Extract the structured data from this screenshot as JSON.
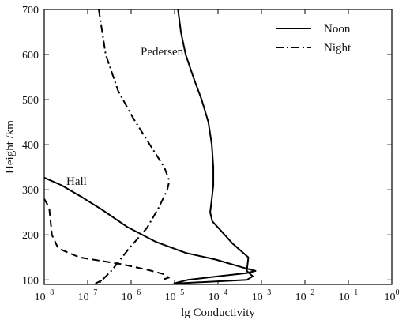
{
  "chart_data": {
    "type": "line",
    "xlabel": "lg Conductivity",
    "ylabel": "Height /km",
    "x_scale": "log",
    "xlim": [
      1e-08,
      1
    ],
    "ylim": [
      90,
      700
    ],
    "x_ticks": [
      {
        "value": 1e-08,
        "mantissa": "10",
        "exp": "−8"
      },
      {
        "value": 1e-07,
        "mantissa": "10",
        "exp": "−7"
      },
      {
        "value": 1e-06,
        "mantissa": "10",
        "exp": "−6"
      },
      {
        "value": 1e-05,
        "mantissa": "10",
        "exp": "−5"
      },
      {
        "value": 0.0001,
        "mantissa": "10",
        "exp": "−4"
      },
      {
        "value": 0.001,
        "mantissa": "10",
        "exp": "−3"
      },
      {
        "value": 0.01,
        "mantissa": "10",
        "exp": "−2"
      },
      {
        "value": 0.1,
        "mantissa": "10",
        "exp": "−1"
      },
      {
        "value": 1,
        "mantissa": "10",
        "exp": "0"
      }
    ],
    "y_ticks": [
      "100",
      "200",
      "300",
      "400",
      "500",
      "600",
      "700"
    ],
    "legend": [
      {
        "name": "Noon",
        "style": "solid"
      },
      {
        "name": "Night",
        "style": "dashdot"
      }
    ],
    "legend_position": "top-right",
    "grid": false,
    "annotations": [
      "Pedersen",
      "Hall"
    ],
    "series": [
      {
        "group": "Noon",
        "quantity": "Pedersen",
        "style": "solid",
        "points": [
          [
            1.2e-05,
            700
          ],
          [
            1.4e-05,
            650
          ],
          [
            1.8e-05,
            600
          ],
          [
            2.7e-05,
            550
          ],
          [
            4.2e-05,
            500
          ],
          [
            6e-05,
            450
          ],
          [
            7.2e-05,
            400
          ],
          [
            7.8e-05,
            350
          ],
          [
            7.8e-05,
            310
          ],
          [
            7.2e-05,
            280
          ],
          [
            6.6e-05,
            250
          ],
          [
            7.4e-05,
            230
          ],
          [
            0.000115,
            210
          ],
          [
            0.00022,
            180
          ],
          [
            0.0005,
            150
          ],
          [
            0.00046,
            120
          ],
          [
            0.00063,
            108
          ],
          [
            0.00046,
            100
          ],
          [
            1e-05,
            92
          ]
        ]
      },
      {
        "group": "Noon",
        "quantity": "Hall",
        "style": "solid",
        "points": [
          [
            1e-08,
            327
          ],
          [
            2.5e-08,
            310
          ],
          [
            7e-08,
            285
          ],
          [
            2.2e-07,
            255
          ],
          [
            8e-07,
            218
          ],
          [
            3.6e-06,
            185
          ],
          [
            1.8e-05,
            160
          ],
          [
            9e-05,
            145
          ],
          [
            0.00042,
            126
          ],
          [
            0.00073,
            120
          ],
          [
            0.00045,
            115
          ],
          [
            0.0001,
            108
          ],
          [
            2e-05,
            100
          ],
          [
            9.5e-06,
            92
          ]
        ]
      },
      {
        "group": "Night",
        "quantity": "Pedersen",
        "style": "dashdot",
        "points": [
          [
            1.8e-07,
            700
          ],
          [
            2.6e-07,
            600
          ],
          [
            5e-07,
            520
          ],
          [
            1.1e-06,
            460
          ],
          [
            2.7e-06,
            400
          ],
          [
            5.8e-06,
            350
          ],
          [
            7.6e-06,
            320
          ],
          [
            6.8e-06,
            300
          ],
          [
            4.3e-06,
            260
          ],
          [
            2.3e-06,
            215
          ],
          [
            9e-07,
            170
          ],
          [
            3.5e-07,
            120
          ],
          [
            1.8e-07,
            92
          ]
        ]
      },
      {
        "group": "Night",
        "quantity": "Hall",
        "style": "dashed",
        "points": [
          [
            1e-08,
            280
          ],
          [
            1.3e-08,
            260
          ],
          [
            1.4e-08,
            230
          ],
          [
            1.5e-08,
            200
          ],
          [
            2.1e-08,
            170
          ],
          [
            6.5e-08,
            150
          ],
          [
            6e-07,
            135
          ],
          [
            2.5e-06,
            122
          ],
          [
            6e-06,
            112
          ],
          [
            7.4e-06,
            105
          ],
          [
            5e-06,
            100
          ]
        ]
      },
      {
        "group": "Night",
        "quantity": "Hall",
        "style": "dashed",
        "points": [
          [
            1.5e-07,
            92
          ],
          [
            2.2e-07,
            100
          ]
        ]
      }
    ]
  }
}
